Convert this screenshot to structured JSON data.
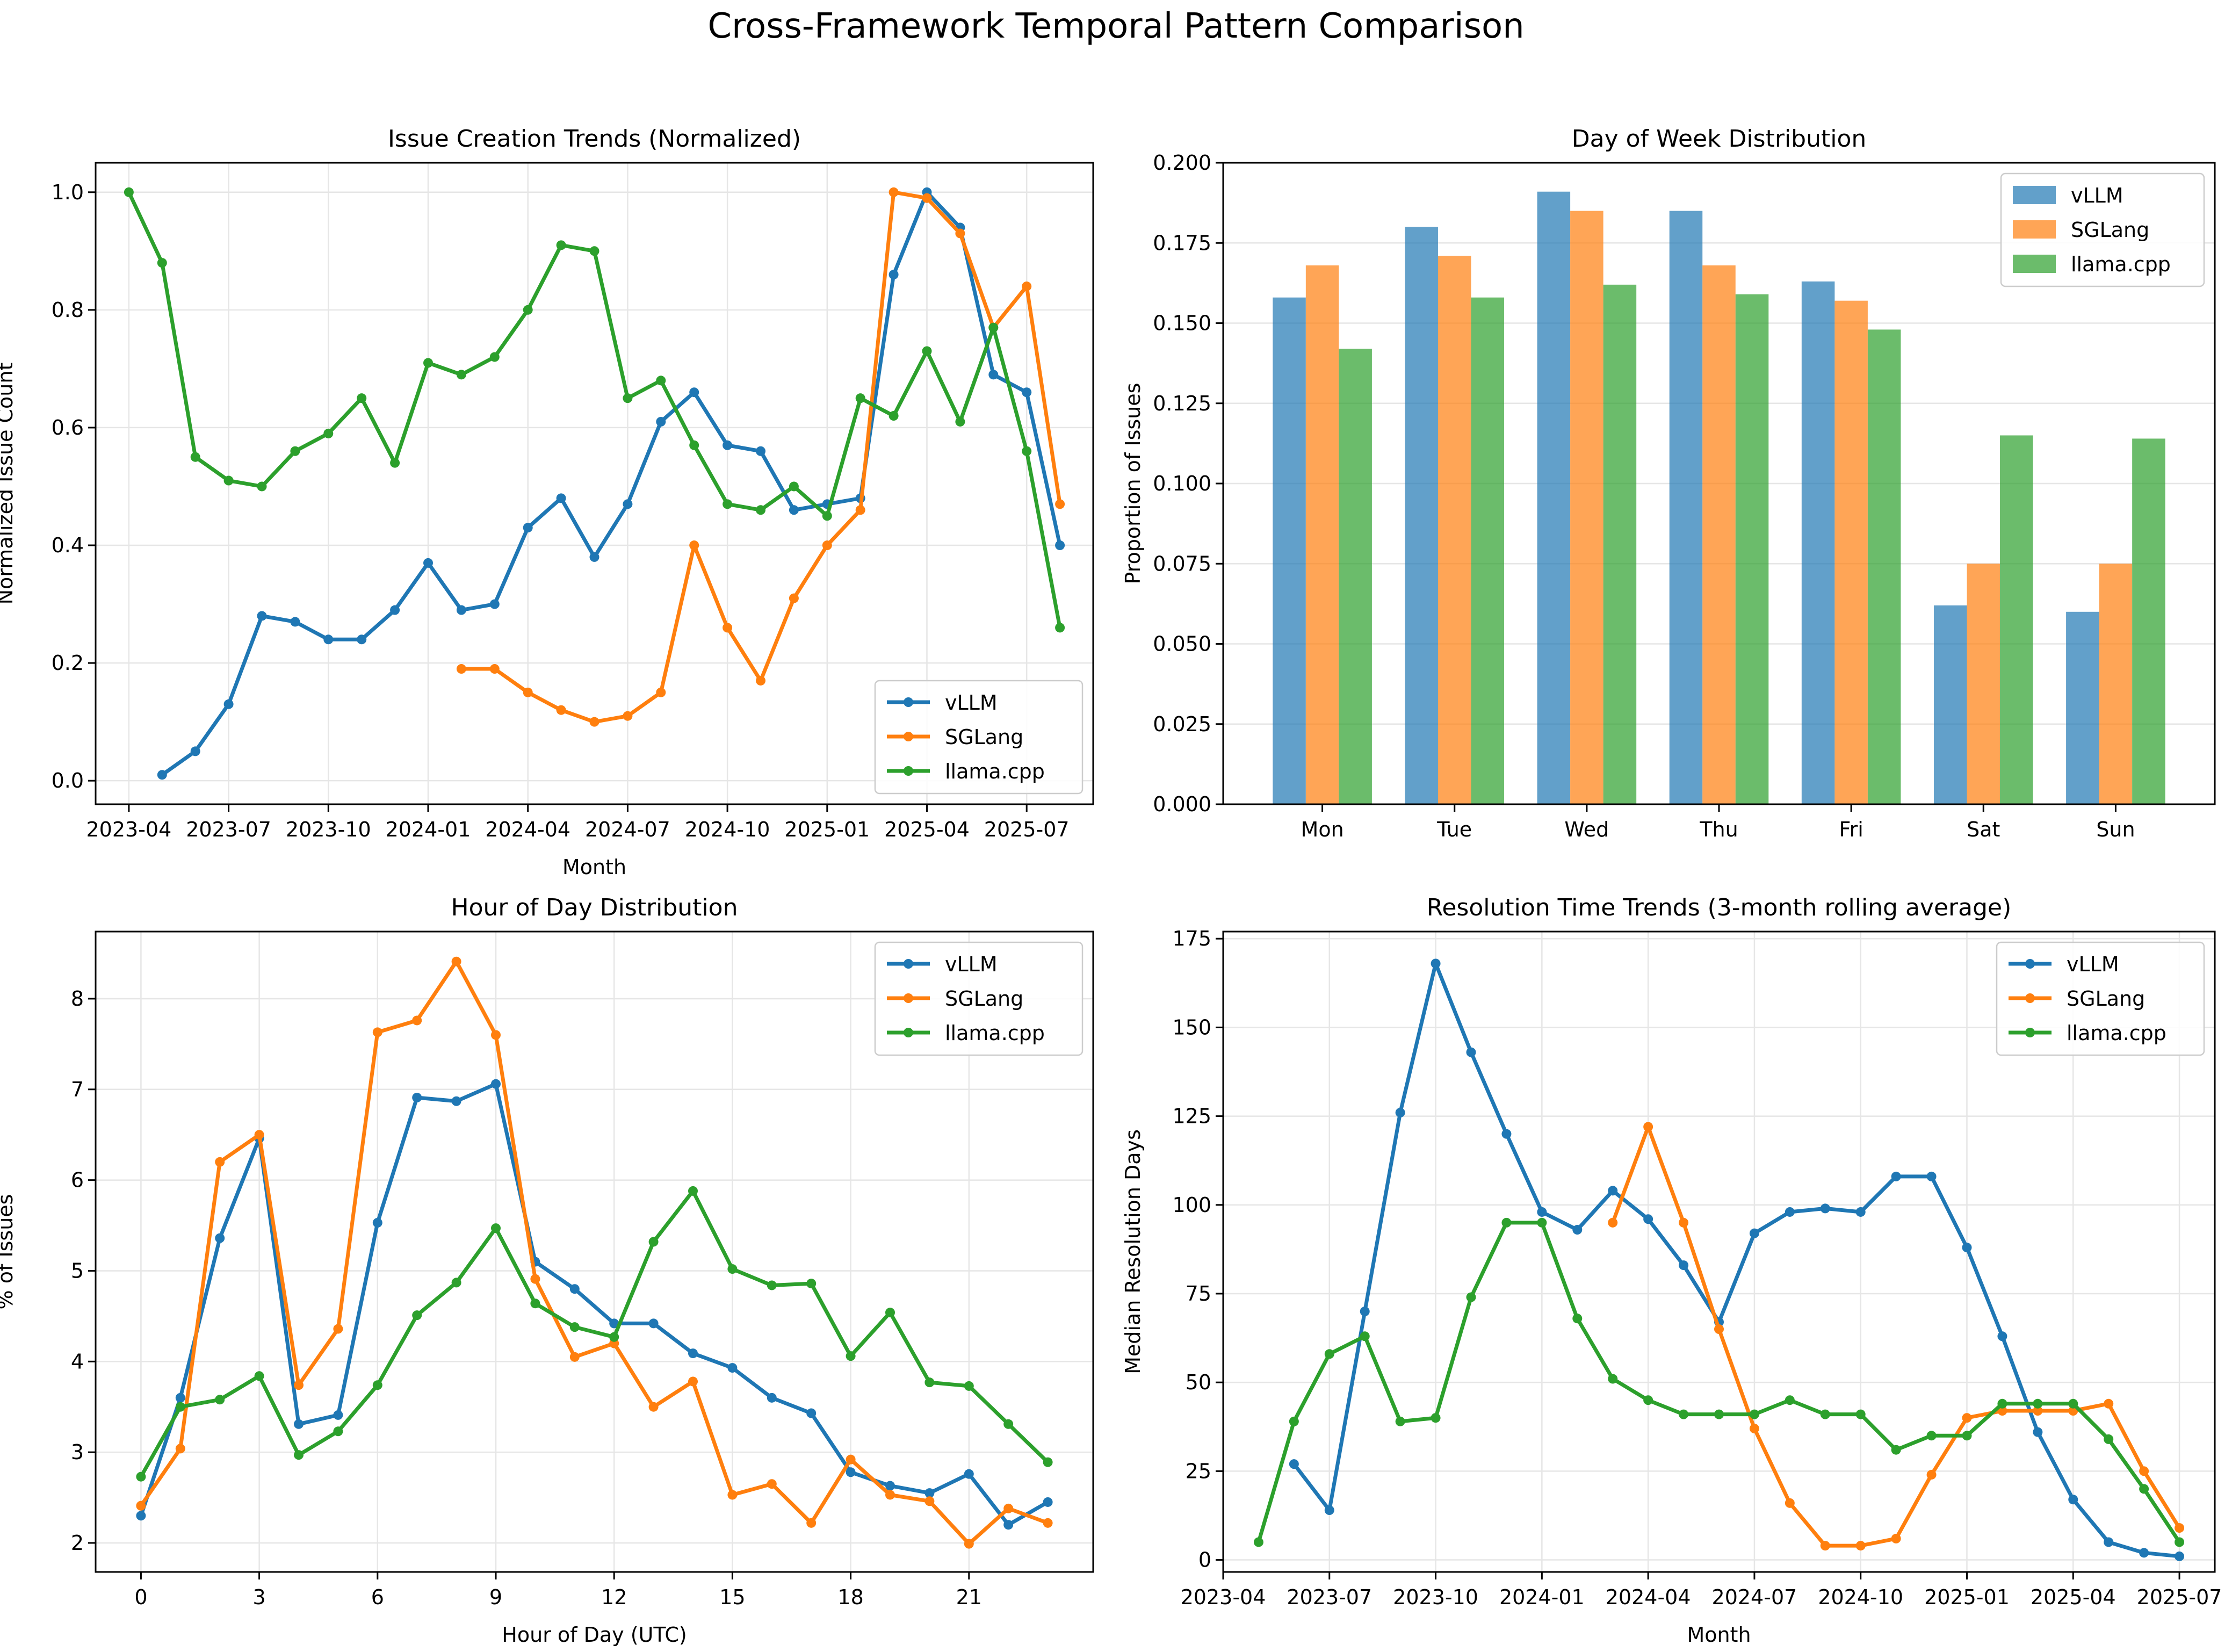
{
  "figure": {
    "title": "Cross-Framework Temporal Pattern Comparison"
  },
  "colors": {
    "vLLM": "#1f77b4",
    "SGLang": "#ff7f0e",
    "llama.cpp": "#2ca02c",
    "grid": "#e6e6e6"
  },
  "chart_data": [
    {
      "type": "line",
      "title": "Issue Creation Trends (Normalized)",
      "xlabel": "Month",
      "ylabel": "Normalized Issue Count",
      "x_axis": "date",
      "xlim": [
        "2023-03",
        "2025-09"
      ],
      "ylim": [
        -0.04,
        1.05
      ],
      "xticks": [
        "2023-04",
        "2023-07",
        "2023-10",
        "2024-01",
        "2024-04",
        "2024-07",
        "2024-10",
        "2025-01",
        "2025-04",
        "2025-07"
      ],
      "yticks": [
        "0.0",
        "0.2",
        "0.4",
        "0.6",
        "0.8",
        "1.0"
      ],
      "grid": true,
      "legend": "lower right",
      "series": [
        {
          "name": "vLLM",
          "x": [
            "2023-05",
            "2023-06",
            "2023-07",
            "2023-08",
            "2023-09",
            "2023-10",
            "2023-11",
            "2023-12",
            "2024-01",
            "2024-02",
            "2024-03",
            "2024-04",
            "2024-05",
            "2024-06",
            "2024-07",
            "2024-08",
            "2024-09",
            "2024-10",
            "2024-11",
            "2024-12",
            "2025-01",
            "2025-02",
            "2025-03",
            "2025-04",
            "2025-05",
            "2025-06",
            "2025-07",
            "2025-08"
          ],
          "y": [
            0.01,
            0.05,
            0.13,
            0.28,
            0.27,
            0.24,
            0.24,
            0.29,
            0.37,
            0.29,
            0.3,
            0.43,
            0.48,
            0.38,
            0.47,
            0.61,
            0.66,
            0.57,
            0.56,
            0.46,
            0.47,
            0.48,
            0.86,
            1.0,
            0.94,
            0.69,
            0.66,
            0.4
          ]
        },
        {
          "name": "SGLang",
          "x": [
            "2024-02",
            "2024-03",
            "2024-04",
            "2024-05",
            "2024-06",
            "2024-07",
            "2024-08",
            "2024-09",
            "2024-10",
            "2024-11",
            "2024-12",
            "2025-01",
            "2025-02",
            "2025-03",
            "2025-04",
            "2025-05",
            "2025-06",
            "2025-07",
            "2025-08"
          ],
          "y": [
            0.19,
            0.19,
            0.15,
            0.12,
            0.1,
            0.11,
            0.15,
            0.4,
            0.26,
            0.17,
            0.31,
            0.4,
            0.46,
            1.0,
            0.99,
            0.93,
            0.77,
            0.84,
            0.47
          ]
        },
        {
          "name": "llama.cpp",
          "x": [
            "2023-04",
            "2023-05",
            "2023-06",
            "2023-07",
            "2023-08",
            "2023-09",
            "2023-10",
            "2023-11",
            "2023-12",
            "2024-01",
            "2024-02",
            "2024-03",
            "2024-04",
            "2024-05",
            "2024-06",
            "2024-07",
            "2024-08",
            "2024-09",
            "2024-10",
            "2024-11",
            "2024-12",
            "2025-01",
            "2025-02",
            "2025-03",
            "2025-04",
            "2025-05",
            "2025-06",
            "2025-07",
            "2025-08"
          ],
          "y": [
            1.0,
            0.88,
            0.55,
            0.51,
            0.5,
            0.56,
            0.59,
            0.65,
            0.54,
            0.71,
            0.69,
            0.72,
            0.8,
            0.91,
            0.9,
            0.65,
            0.68,
            0.57,
            0.47,
            0.46,
            0.5,
            0.45,
            0.65,
            0.62,
            0.73,
            0.61,
            0.77,
            0.56,
            0.26
          ]
        }
      ]
    },
    {
      "type": "bar",
      "title": "Day of Week Distribution",
      "ylabel": "Proportion of Issues",
      "categories": [
        "Mon",
        "Tue",
        "Wed",
        "Thu",
        "Fri",
        "Sat",
        "Sun"
      ],
      "ylim": [
        0,
        0.2
      ],
      "yticks": [
        "0.000",
        "0.025",
        "0.050",
        "0.075",
        "0.100",
        "0.125",
        "0.150",
        "0.175",
        "0.200"
      ],
      "grid": true,
      "legend": "upper right",
      "series": [
        {
          "name": "vLLM",
          "values": [
            0.158,
            0.18,
            0.191,
            0.185,
            0.163,
            0.062,
            0.06
          ]
        },
        {
          "name": "SGLang",
          "values": [
            0.168,
            0.171,
            0.185,
            0.168,
            0.157,
            0.075,
            0.075
          ]
        },
        {
          "name": "llama.cpp",
          "values": [
            0.142,
            0.158,
            0.162,
            0.159,
            0.148,
            0.115,
            0.114
          ]
        }
      ]
    },
    {
      "type": "line",
      "title": "Hour of Day Distribution",
      "xlabel": "Hour of Day (UTC)",
      "ylabel": "% of Issues",
      "xlim": [
        -1.15,
        24.15
      ],
      "ylim": [
        1.68,
        8.74
      ],
      "xticks": [
        "0",
        "3",
        "6",
        "9",
        "12",
        "15",
        "18",
        "21"
      ],
      "yticks": [
        "2",
        "3",
        "4",
        "5",
        "6",
        "7",
        "8"
      ],
      "grid": true,
      "legend": "upper right",
      "series": [
        {
          "name": "vLLM",
          "x": [
            0,
            1,
            2,
            3,
            4,
            5,
            6,
            7,
            8,
            9,
            10,
            11,
            12,
            13,
            14,
            15,
            16,
            17,
            18,
            19,
            20,
            21,
            22,
            23
          ],
          "y": [
            2.3,
            3.6,
            5.36,
            6.46,
            3.31,
            3.41,
            5.53,
            6.91,
            6.87,
            7.06,
            5.1,
            4.8,
            4.42,
            4.42,
            4.09,
            3.93,
            3.6,
            3.43,
            2.78,
            2.63,
            2.55,
            2.76,
            2.2,
            2.45
          ]
        },
        {
          "name": "SGLang",
          "x": [
            0,
            1,
            2,
            3,
            4,
            5,
            6,
            7,
            8,
            9,
            10,
            11,
            12,
            13,
            14,
            15,
            16,
            17,
            18,
            19,
            20,
            21,
            22,
            23
          ],
          "y": [
            2.41,
            3.04,
            6.2,
            6.5,
            3.74,
            4.36,
            7.63,
            7.76,
            8.41,
            7.6,
            4.91,
            4.05,
            4.2,
            3.5,
            3.78,
            2.53,
            2.65,
            2.22,
            2.92,
            2.53,
            2.46,
            1.99,
            2.38,
            2.22
          ]
        },
        {
          "name": "llama.cpp",
          "x": [
            0,
            1,
            2,
            3,
            4,
            5,
            6,
            7,
            8,
            9,
            10,
            11,
            12,
            13,
            14,
            15,
            16,
            17,
            18,
            19,
            20,
            21,
            22,
            23
          ],
          "y": [
            2.73,
            3.5,
            3.58,
            3.84,
            2.97,
            3.23,
            3.74,
            4.51,
            4.87,
            5.47,
            4.64,
            4.38,
            4.27,
            5.32,
            5.88,
            5.02,
            4.84,
            4.86,
            4.06,
            4.54,
            3.77,
            3.73,
            3.31,
            2.89
          ]
        }
      ]
    },
    {
      "type": "line",
      "title": "Resolution Time Trends (3-month rolling average)",
      "xlabel": "Month",
      "ylabel": "Median Resolution Days",
      "x_axis": "date",
      "xlim": [
        "2023-04",
        "2025-08"
      ],
      "ylim": [
        -3.4,
        177
      ],
      "xticks": [
        "2023-04",
        "2023-07",
        "2023-10",
        "2024-01",
        "2024-04",
        "2024-07",
        "2024-10",
        "2025-01",
        "2025-04",
        "2025-07"
      ],
      "yticks": [
        "0",
        "25",
        "50",
        "75",
        "100",
        "125",
        "150",
        "175"
      ],
      "grid": true,
      "legend": "upper right",
      "series": [
        {
          "name": "vLLM",
          "x": [
            "2023-06",
            "2023-07",
            "2023-08",
            "2023-09",
            "2023-10",
            "2023-11",
            "2023-12",
            "2024-01",
            "2024-02",
            "2024-03",
            "2024-04",
            "2024-05",
            "2024-06",
            "2024-07",
            "2024-08",
            "2024-09",
            "2024-10",
            "2024-11",
            "2024-12",
            "2025-01",
            "2025-02",
            "2025-03",
            "2025-04",
            "2025-05",
            "2025-06",
            "2025-07"
          ],
          "y": [
            27,
            14,
            70,
            126,
            168,
            143,
            120,
            98,
            93,
            104,
            96,
            83,
            67,
            92,
            98,
            99,
            98,
            108,
            108,
            88,
            63,
            36,
            17,
            5,
            2,
            1
          ]
        },
        {
          "name": "SGLang",
          "x": [
            "2024-03",
            "2024-04",
            "2024-05",
            "2024-06",
            "2024-07",
            "2024-08",
            "2024-09",
            "2024-10",
            "2024-11",
            "2024-12",
            "2025-01",
            "2025-02",
            "2025-03",
            "2025-04",
            "2025-05",
            "2025-06",
            "2025-07"
          ],
          "y": [
            95,
            122,
            95,
            65,
            37,
            16,
            4,
            4,
            6,
            24,
            40,
            42,
            42,
            42,
            44,
            25,
            9
          ]
        },
        {
          "name": "llama.cpp",
          "x": [
            "2023-05",
            "2023-06",
            "2023-07",
            "2023-08",
            "2023-09",
            "2023-10",
            "2023-11",
            "2023-12",
            "2024-01",
            "2024-02",
            "2024-03",
            "2024-04",
            "2024-05",
            "2024-06",
            "2024-07",
            "2024-08",
            "2024-09",
            "2024-10",
            "2024-11",
            "2024-12",
            "2025-01",
            "2025-02",
            "2025-03",
            "2025-04",
            "2025-05",
            "2025-06",
            "2025-07"
          ],
          "y": [
            5,
            39,
            58,
            63,
            39,
            40,
            74,
            95,
            95,
            68,
            51,
            45,
            41,
            41,
            41,
            45,
            41,
            41,
            31,
            35,
            35,
            44,
            44,
            44,
            34,
            20,
            5
          ]
        }
      ]
    }
  ]
}
